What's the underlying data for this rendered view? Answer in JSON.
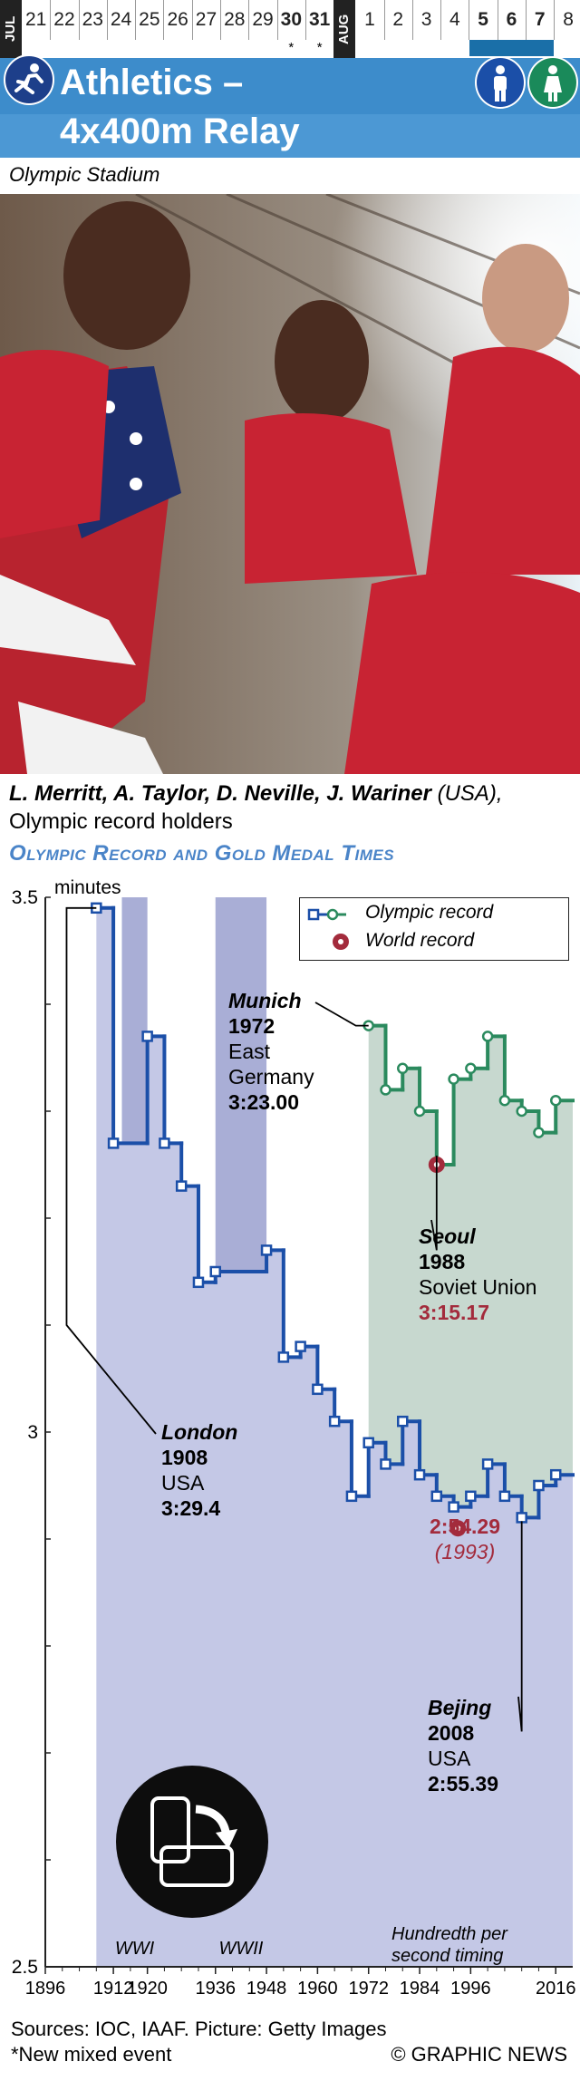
{
  "calendar": {
    "month_jul": "JUL",
    "month_aug": "AUG",
    "jul_days": [
      "21",
      "22",
      "23",
      "24",
      "25",
      "26",
      "27",
      "28",
      "29",
      "30",
      "31"
    ],
    "aug_days": [
      "1",
      "2",
      "3",
      "4",
      "5",
      "6",
      "7",
      "8"
    ],
    "highlight_days": [
      "5",
      "6",
      "7"
    ],
    "starred_days": [
      "30",
      "31"
    ],
    "star": "*"
  },
  "header": {
    "title_line1": "Athletics –",
    "title_line2": "4x400m Relay",
    "sport_icon": "runner-icon",
    "men_icon": "male-icon",
    "women_icon": "female-icon"
  },
  "venue": "Olympic Stadium",
  "caption": {
    "names": "L. Merritt, A. Taylor, D. Neville, J. Wariner",
    "country": " (USA),",
    "line2": "Olympic record holders"
  },
  "chart_title": "Olympic Record and Gold Medal Times",
  "chart_data": {
    "type": "line",
    "y_unit": "minutes",
    "ylim": [
      2.5,
      3.5
    ],
    "yticks": [
      {
        "v": 3.5,
        "label": "3.5"
      },
      {
        "v": 3.0,
        "label": "3"
      },
      {
        "v": 2.5,
        "label": "2.5"
      }
    ],
    "xlim": [
      1896,
      2020
    ],
    "xticks": [
      "1896",
      "1912",
      "1920",
      "1936",
      "1948",
      "1960",
      "1972",
      "1984",
      "1996",
      "2016"
    ],
    "legend": {
      "olympic": "Olympic record",
      "world": "World record",
      "position": "top-right"
    },
    "series": [
      {
        "name": "Olympic record",
        "color": "#1b4fa8",
        "points": [
          {
            "x": 1908,
            "y": 3.49
          },
          {
            "x": 1912,
            "y": 3.27
          },
          {
            "x": 1920,
            "y": 3.37
          },
          {
            "x": 1924,
            "y": 3.27
          },
          {
            "x": 1928,
            "y": 3.23
          },
          {
            "x": 1932,
            "y": 3.14
          },
          {
            "x": 1936,
            "y": 3.15
          },
          {
            "x": 1948,
            "y": 3.17
          },
          {
            "x": 1952,
            "y": 3.07
          },
          {
            "x": 1956,
            "y": 3.08
          },
          {
            "x": 1960,
            "y": 3.04
          },
          {
            "x": 1964,
            "y": 3.01
          },
          {
            "x": 1968,
            "y": 2.94
          },
          {
            "x": 1972,
            "y": 2.99
          },
          {
            "x": 1976,
            "y": 2.97
          },
          {
            "x": 1980,
            "y": 3.01
          },
          {
            "x": 1984,
            "y": 2.96
          },
          {
            "x": 1988,
            "y": 2.94
          },
          {
            "x": 1992,
            "y": 2.93
          },
          {
            "x": 1996,
            "y": 2.94
          },
          {
            "x": 2000,
            "y": 2.97
          },
          {
            "x": 2004,
            "y": 2.94
          },
          {
            "x": 2008,
            "y": 2.92
          },
          {
            "x": 2012,
            "y": 2.95
          },
          {
            "x": 2016,
            "y": 2.96
          }
        ],
        "dashed_segments": [
          [
            1912,
            1920
          ],
          [
            1936,
            1948
          ]
        ]
      },
      {
        "name": "Olympic record",
        "color": "#2b8a5e",
        "points": [
          {
            "x": 1972,
            "y": 3.38
          },
          {
            "x": 1976,
            "y": 3.32
          },
          {
            "x": 1980,
            "y": 3.34
          },
          {
            "x": 1984,
            "y": 3.3
          },
          {
            "x": 1988,
            "y": 3.25
          },
          {
            "x": 1992,
            "y": 3.33
          },
          {
            "x": 1996,
            "y": 3.34
          },
          {
            "x": 2000,
            "y": 3.37
          },
          {
            "x": 2004,
            "y": 3.31
          },
          {
            "x": 2008,
            "y": 3.3
          },
          {
            "x": 2012,
            "y": 3.28
          },
          {
            "x": 2016,
            "y": 3.31
          }
        ]
      }
    ],
    "world_records": [
      {
        "x": 1988,
        "y": 3.25,
        "label": "3:15.17"
      },
      {
        "x": 1993,
        "y": 2.91,
        "label": "2:54.29",
        "sub": "(1993)"
      }
    ],
    "war_bands": [
      {
        "label": "WWI",
        "from": 1914,
        "to": 1920
      },
      {
        "label": "WWII",
        "from": 1936,
        "to": 1948
      }
    ],
    "hundredth_note": "Hundredth per second timing",
    "hundredth_year": 1972,
    "annotations": {
      "london": {
        "city": "London",
        "year": "1908",
        "country": "USA",
        "time": "3:29.4"
      },
      "munich": {
        "city": "Munich",
        "year": "1972",
        "country1": "East",
        "country2": "Germany",
        "time": "3:23.00"
      },
      "seoul": {
        "city": "Seoul",
        "year": "1988",
        "country": "Soviet Union",
        "time": "3:15.17"
      },
      "wr1993": {
        "time": "2:54.29",
        "year": "(1993)"
      },
      "beijing": {
        "city": "Bejing",
        "year": "2008",
        "country": "USA",
        "time": "2:55.39"
      }
    }
  },
  "footer": {
    "sources": "Sources: IOC, IAAF. Picture: Getty Images",
    "note": "*New mixed event",
    "brand": "© GRAPHIC NEWS"
  }
}
